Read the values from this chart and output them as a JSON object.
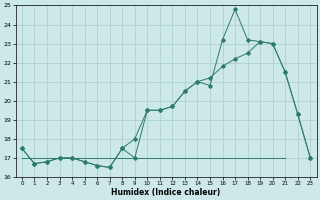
{
  "xlabel": "Humidex (Indice chaleur)",
  "x": [
    0,
    1,
    2,
    3,
    4,
    5,
    6,
    7,
    8,
    9,
    10,
    11,
    12,
    13,
    14,
    15,
    16,
    17,
    18,
    19,
    20,
    21,
    22,
    23
  ],
  "line1": [
    17.5,
    16.7,
    16.8,
    17.0,
    17.0,
    16.8,
    16.6,
    16.5,
    17.5,
    17.0,
    19.5,
    19.5,
    19.7,
    20.5,
    21.0,
    20.8,
    23.2,
    24.8,
    23.2,
    23.1,
    23.0,
    21.5,
    19.3,
    17.0
  ],
  "line2": [
    17.5,
    16.7,
    16.8,
    17.0,
    17.0,
    16.8,
    16.6,
    16.5,
    17.5,
    18.0,
    19.5,
    19.5,
    19.7,
    20.5,
    21.0,
    21.2,
    21.8,
    22.2,
    22.5,
    23.1,
    23.0,
    21.5,
    19.3,
    17.0
  ],
  "line3_x": [
    0,
    1,
    2,
    3,
    4,
    5,
    6,
    7,
    8,
    9,
    10,
    11,
    12,
    13,
    14,
    15,
    16,
    17,
    18,
    19,
    20,
    21
  ],
  "line3_y": [
    17.0,
    17.0,
    17.0,
    17.0,
    17.0,
    17.0,
    17.0,
    17.0,
    17.0,
    17.0,
    17.0,
    17.0,
    17.0,
    17.0,
    17.0,
    17.0,
    17.0,
    17.0,
    17.0,
    17.0,
    17.0,
    17.0
  ],
  "line_color": "#2d7b6e",
  "bg_color": "#cce8e8",
  "grid_color": "#aacccc",
  "ylim": [
    16,
    25
  ],
  "xlim": [
    -0.5,
    23.5
  ],
  "yticks": [
    16,
    17,
    18,
    19,
    20,
    21,
    22,
    23,
    24,
    25
  ],
  "xticks": [
    0,
    1,
    2,
    3,
    4,
    5,
    6,
    7,
    8,
    9,
    10,
    11,
    12,
    13,
    14,
    15,
    16,
    17,
    18,
    19,
    20,
    21,
    22,
    23
  ]
}
